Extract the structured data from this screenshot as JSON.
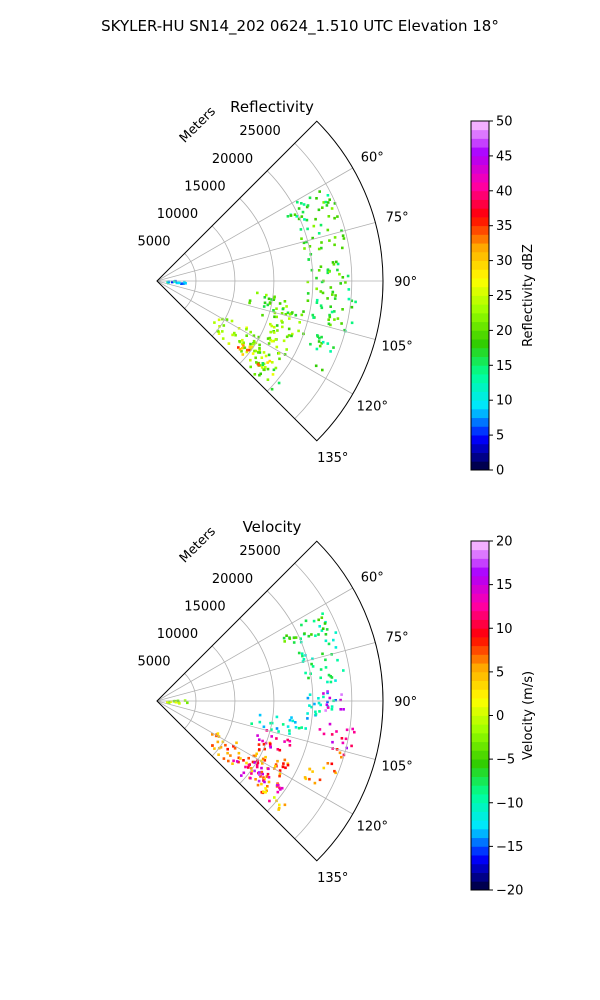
{
  "figure": {
    "suptitle": "SKYLER-HU  SN14_202  0624_1.510 UTC Elevation 18°"
  },
  "chart_data": [
    {
      "type": "heatmap",
      "projection": "polar-sector",
      "title": "Reflectivity",
      "radial_axis_label": "Meters",
      "radial_ticks": [
        5000,
        10000,
        15000,
        20000,
        25000
      ],
      "radial_tick_labels": [
        "5000",
        "10000",
        "15000",
        "20000",
        "25000"
      ],
      "rlim": [
        0,
        29000
      ],
      "azimuth_ticks": [
        60,
        75,
        90,
        105,
        120,
        135
      ],
      "azimuth_tick_labels": [
        "60°",
        "75°",
        "90°",
        "105°",
        "120°",
        "135°"
      ],
      "azimuth_range": [
        45,
        135
      ],
      "grid": true,
      "colorbar": {
        "label": "Reflectivity dBZ",
        "range": [
          0,
          50
        ],
        "ticks": [
          0,
          5,
          10,
          15,
          20,
          25,
          30,
          35,
          40,
          45,
          50
        ],
        "tick_labels": [
          "0",
          "5",
          "10",
          "15",
          "20",
          "25",
          "30",
          "35",
          "40",
          "45",
          "50"
        ],
        "colormap": [
          "#000033",
          "#0000ff",
          "#00e5ff",
          "#00ff99",
          "#33cc00",
          "#99ff00",
          "#ffff00",
          "#ffaa00",
          "#ff0000",
          "#ff00aa",
          "#aa00ff",
          "#ffccff"
        ]
      },
      "echo_regions": [
        {
          "az": [
            64,
            95
          ],
          "r": [
            19000,
            24500
          ],
          "value": 18
        },
        {
          "az": [
            92,
            107
          ],
          "r": [
            20000,
            25500
          ],
          "value": 17
        },
        {
          "az": [
            96,
            104
          ],
          "r": [
            12000,
            19500
          ],
          "value": 19
        },
        {
          "az": [
            100,
            110
          ],
          "r": [
            14000,
            20000
          ],
          "value": 20
        },
        {
          "az": [
            108,
            119
          ],
          "r": [
            21000,
            24500
          ],
          "value": 16
        },
        {
          "az": [
            110,
            126
          ],
          "r": [
            14000,
            18500
          ],
          "value": 21
        },
        {
          "az": [
            117,
            131
          ],
          "r": [
            8000,
            19000
          ],
          "value": 23
        },
        {
          "az": [
            124,
            131
          ],
          "r": [
            13000,
            18000
          ],
          "value": 32
        },
        {
          "az": [
            126,
            134
          ],
          "r": [
            16000,
            20500
          ],
          "value": 19
        },
        {
          "az": [
            60,
            67
          ],
          "r": [
            18000,
            25000
          ],
          "value": 16
        },
        {
          "az": [
            85,
            95
          ],
          "r": [
            1000,
            4000
          ],
          "value": 9
        }
      ]
    },
    {
      "type": "heatmap",
      "projection": "polar-sector",
      "title": "Velocity",
      "radial_axis_label": "Meters",
      "radial_ticks": [
        5000,
        10000,
        15000,
        20000,
        25000
      ],
      "radial_tick_labels": [
        "5000",
        "10000",
        "15000",
        "20000",
        "25000"
      ],
      "rlim": [
        0,
        29000
      ],
      "azimuth_ticks": [
        60,
        75,
        90,
        105,
        120,
        135
      ],
      "azimuth_tick_labels": [
        "60°",
        "75°",
        "90°",
        "105°",
        "120°",
        "135°"
      ],
      "azimuth_range": [
        45,
        135
      ],
      "grid": true,
      "colorbar": {
        "label": "Velocity (m/s)",
        "range": [
          -20,
          20
        ],
        "ticks": [
          -20,
          -15,
          -10,
          -5,
          0,
          5,
          10,
          15,
          20
        ],
        "tick_labels": [
          "−20",
          "−15",
          "−10",
          "−5",
          "0",
          "5",
          "10",
          "15",
          "20"
        ],
        "colormap": [
          "#000033",
          "#0000ff",
          "#00e5ff",
          "#00ff99",
          "#33cc00",
          "#99ff00",
          "#ffff00",
          "#ffaa00",
          "#ff0000",
          "#ff00aa",
          "#aa00ff",
          "#ffccff"
        ]
      },
      "echo_regions": [
        {
          "az": [
            64,
            84
          ],
          "r": [
            19000,
            24500
          ],
          "value": -9
        },
        {
          "az": [
            84,
            96
          ],
          "r": [
            19000,
            23500
          ],
          "value": -12
        },
        {
          "az": [
            86,
            95
          ],
          "r": [
            21000,
            24000
          ],
          "value": 16
        },
        {
          "az": [
            97,
            104
          ],
          "r": [
            21000,
            25500
          ],
          "value": 14
        },
        {
          "az": [
            100,
            107
          ],
          "r": [
            23000,
            25500
          ],
          "value": 9
        },
        {
          "az": [
            96,
            104
          ],
          "r": [
            12000,
            19500
          ],
          "value": -11
        },
        {
          "az": [
            104,
            112
          ],
          "r": [
            13000,
            18000
          ],
          "value": 13
        },
        {
          "az": [
            108,
            118
          ],
          "r": [
            21000,
            24500
          ],
          "value": 6
        },
        {
          "az": [
            110,
            126
          ],
          "r": [
            14000,
            18500
          ],
          "value": 7
        },
        {
          "az": [
            117,
            131
          ],
          "r": [
            8000,
            19000
          ],
          "value": 6
        },
        {
          "az": [
            120,
            128
          ],
          "r": [
            12000,
            17000
          ],
          "value": 12
        },
        {
          "az": [
            124,
            132
          ],
          "r": [
            14000,
            19500
          ],
          "value": 15
        },
        {
          "az": [
            128,
            134
          ],
          "r": [
            17000,
            21000
          ],
          "value": 3
        },
        {
          "az": [
            60,
            67
          ],
          "r": [
            18000,
            25000
          ],
          "value": -6
        },
        {
          "az": [
            85,
            95
          ],
          "r": [
            1000,
            4000
          ],
          "value": -1
        }
      ]
    }
  ]
}
